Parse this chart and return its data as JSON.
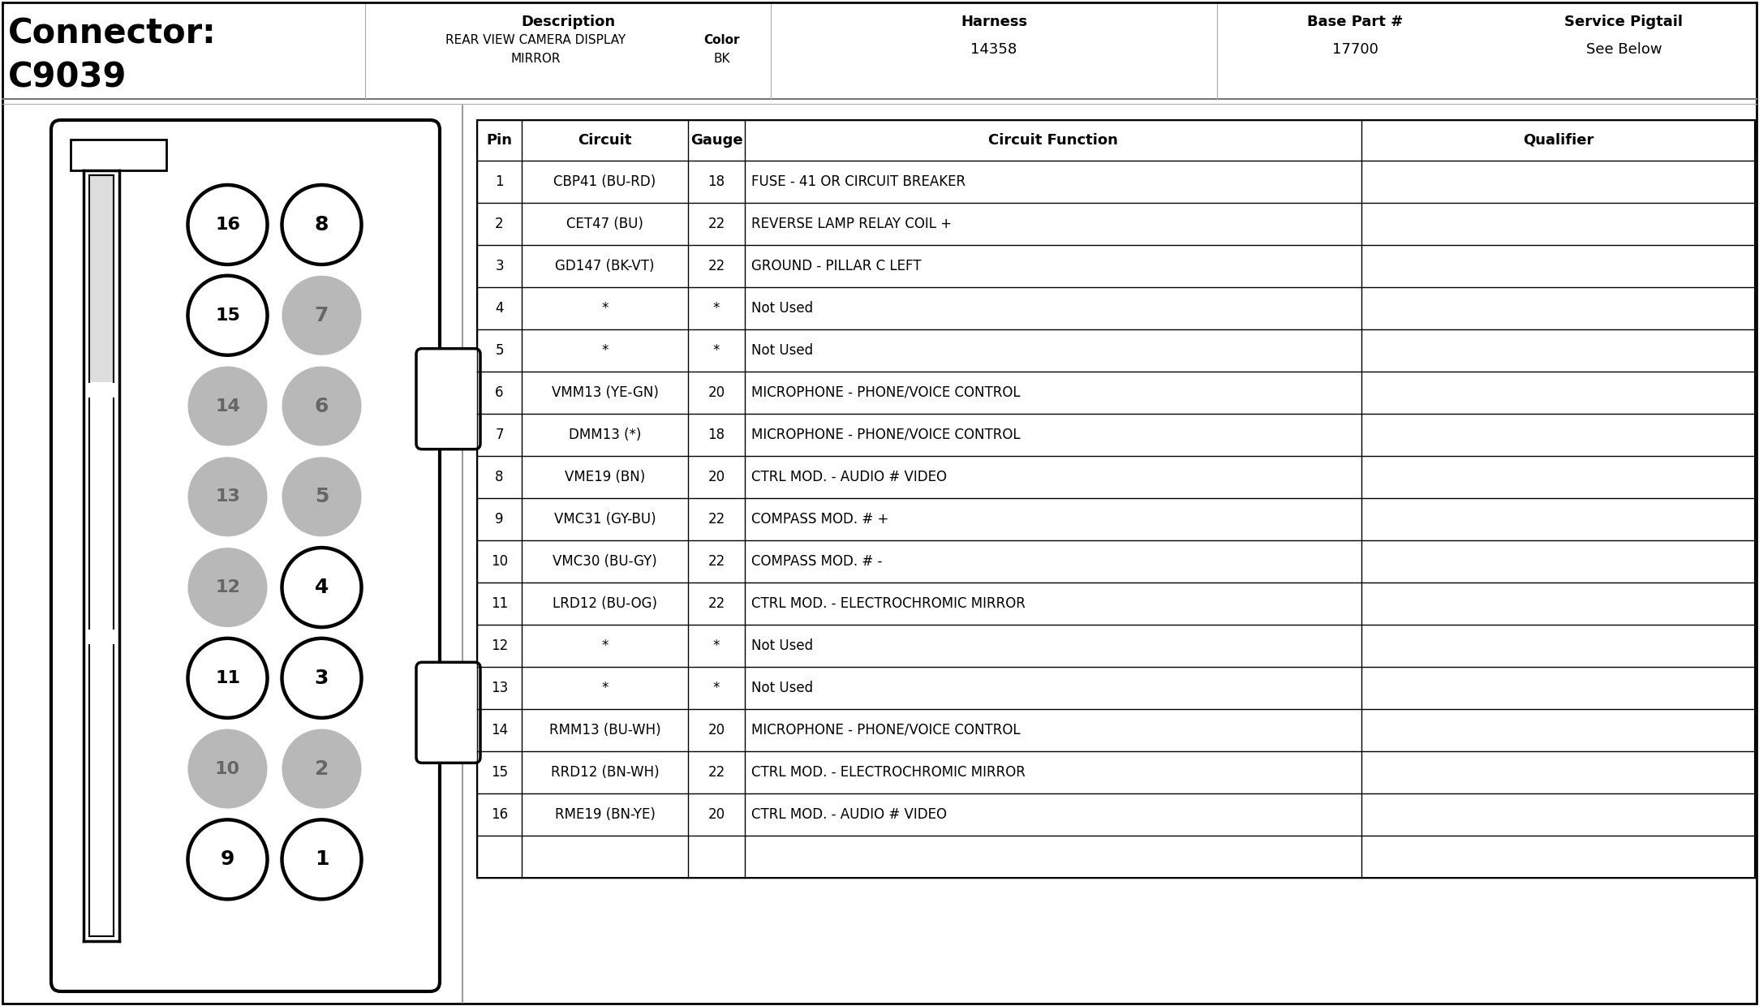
{
  "title_connector": "Connector:",
  "title_code": "C9039",
  "header_desc_label": "Description",
  "header_desc_line1": "REAR VIEW CAMERA DISPLAY",
  "header_desc_line2": "MIRROR",
  "header_color_label": "Color",
  "header_color_value": "BK",
  "header_harness_label": "Harness",
  "header_harness_value": "14358",
  "header_base_label": "Base Part #",
  "header_base_value": "17700",
  "header_service_label": "Service Pigtail",
  "header_service_value": "See Below",
  "table_headers": [
    "Pin",
    "Circuit",
    "Gauge",
    "Circuit Function",
    "Qualifier"
  ],
  "table_rows": [
    [
      "1",
      "CBP41 (BU-RD)",
      "18",
      "FUSE - 41 OR CIRCUIT BREAKER",
      ""
    ],
    [
      "2",
      "CET47 (BU)",
      "22",
      "REVERSE LAMP RELAY COIL +",
      ""
    ],
    [
      "3",
      "GD147 (BK-VT)",
      "22",
      "GROUND - PILLAR C LEFT",
      ""
    ],
    [
      "4",
      "*",
      "*",
      "Not Used",
      ""
    ],
    [
      "5",
      "*",
      "*",
      "Not Used",
      ""
    ],
    [
      "6",
      "VMM13 (YE-GN)",
      "20",
      "MICROPHONE - PHONE/VOICE CONTROL",
      ""
    ],
    [
      "7",
      "DMM13 (*)",
      "18",
      "MICROPHONE - PHONE/VOICE CONTROL",
      ""
    ],
    [
      "8",
      "VME19 (BN)",
      "20",
      "CTRL MOD. - AUDIO # VIDEO",
      ""
    ],
    [
      "9",
      "VMC31 (GY-BU)",
      "22",
      "COMPASS MOD. # +",
      ""
    ],
    [
      "10",
      "VMC30 (BU-GY)",
      "22",
      "COMPASS MOD. # -",
      ""
    ],
    [
      "11",
      "LRD12 (BU-OG)",
      "22",
      "CTRL MOD. - ELECTROCHROMIC MIRROR",
      ""
    ],
    [
      "12",
      "*",
      "*",
      "Not Used",
      ""
    ],
    [
      "13",
      "*",
      "*",
      "Not Used",
      ""
    ],
    [
      "14",
      "RMM13 (BU-WH)",
      "20",
      "MICROPHONE - PHONE/VOICE CONTROL",
      ""
    ],
    [
      "15",
      "RRD12 (BN-WH)",
      "22",
      "CTRL MOD. - ELECTROCHROMIC MIRROR",
      ""
    ],
    [
      "16",
      "RME19 (BN-YE)",
      "20",
      "CTRL MOD. - AUDIO # VIDEO",
      ""
    ],
    [
      "",
      "",
      "",
      "",
      ""
    ]
  ],
  "pin_layout": [
    {
      "num": 16,
      "col": 0,
      "row": 0,
      "filled": false
    },
    {
      "num": 8,
      "col": 1,
      "row": 0,
      "filled": false
    },
    {
      "num": 15,
      "col": 0,
      "row": 1,
      "filled": false
    },
    {
      "num": 7,
      "col": 1,
      "row": 1,
      "filled": true
    },
    {
      "num": 14,
      "col": 0,
      "row": 2,
      "filled": true
    },
    {
      "num": 6,
      "col": 1,
      "row": 2,
      "filled": true
    },
    {
      "num": 13,
      "col": 0,
      "row": 3,
      "filled": true
    },
    {
      "num": 5,
      "col": 1,
      "row": 3,
      "filled": true
    },
    {
      "num": 12,
      "col": 0,
      "row": 4,
      "filled": true
    },
    {
      "num": 4,
      "col": 1,
      "row": 4,
      "filled": false
    },
    {
      "num": 11,
      "col": 0,
      "row": 5,
      "filled": false
    },
    {
      "num": 3,
      "col": 1,
      "row": 5,
      "filled": false
    },
    {
      "num": 10,
      "col": 0,
      "row": 6,
      "filled": true
    },
    {
      "num": 2,
      "col": 1,
      "row": 6,
      "filled": true
    },
    {
      "num": 9,
      "col": 0,
      "row": 7,
      "filled": false
    },
    {
      "num": 1,
      "col": 1,
      "row": 7,
      "filled": false
    }
  ],
  "bg_color": "#ffffff",
  "pin_white_fill": "#ffffff",
  "pin_gray_fill": "#b8b8b8"
}
